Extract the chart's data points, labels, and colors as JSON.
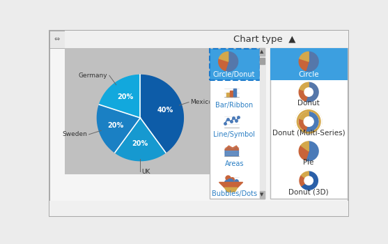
{
  "bg_color": "#ececec",
  "dialog_bg": "#f5f5f5",
  "header_bg": "#f0f0f0",
  "preview_bg": "#c0c0c0",
  "title_text": "Chart type",
  "title_color": "#333333",
  "selected_bg": "#3c9fe0",
  "selected_border": "#1a7acc",
  "item_text_color": "#2b7fc4",
  "white": "#ffffff",
  "left_items": [
    "Circle/Donut",
    "Bar/Ribbon",
    "Line/Symbol",
    "Areas",
    "Bubbles/Dots"
  ],
  "right_items": [
    "Circle",
    "Donut",
    "Donut (Multi-Series)",
    "Pie",
    "Donut (3D)"
  ],
  "pie_slices_deg": [
    144,
    72,
    72,
    72
  ],
  "pie_colors": [
    "#0d5ca8",
    "#1699d0",
    "#1a80c4",
    "#12a8dd"
  ],
  "pie_labels_pct": [
    "40%",
    "20%",
    "20%",
    "20%"
  ],
  "pie_labels_name": [
    "Mexico",
    "UK",
    "Sweden",
    "Germany"
  ],
  "icon_colors": [
    "#5577aa",
    "#c8643a",
    "#d4a84b"
  ],
  "icon_slices": [
    0.55,
    0.25,
    0.2
  ],
  "scrollbar_bg": "#d0d0d0",
  "scrollbar_thumb": "#a0a0a0"
}
